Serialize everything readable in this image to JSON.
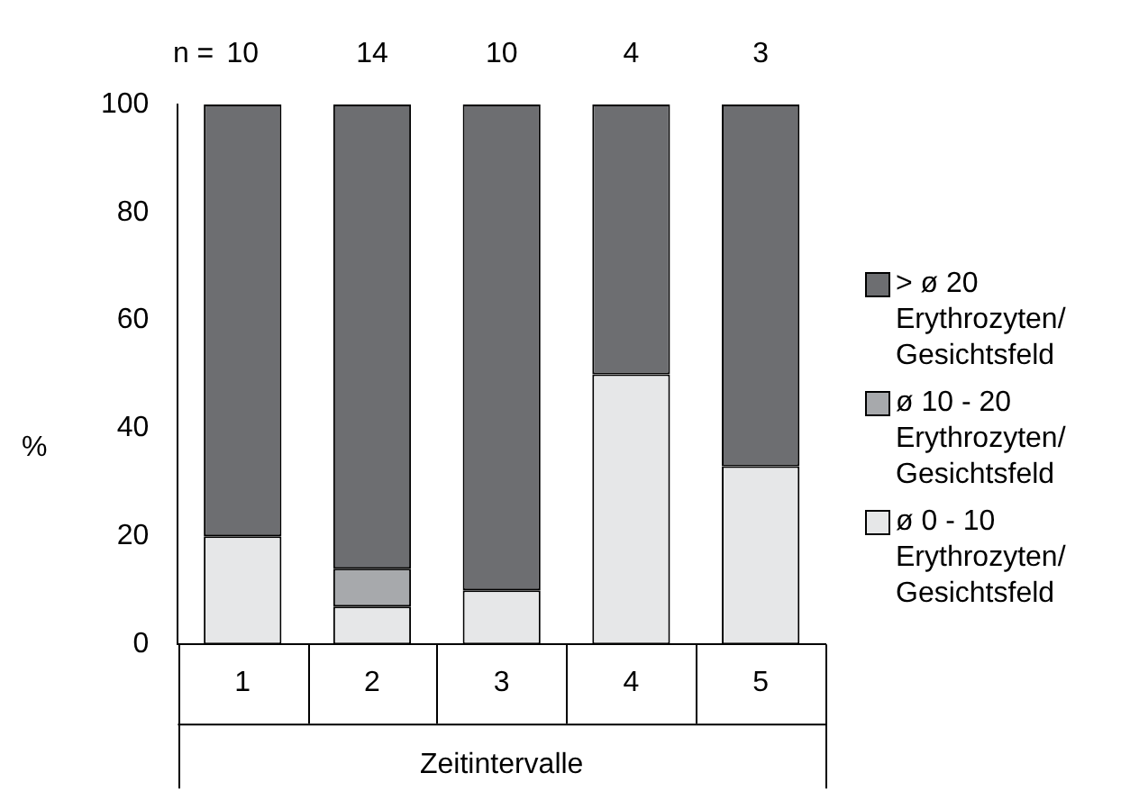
{
  "chart_data": {
    "type": "bar",
    "stacked": true,
    "categories": [
      "1",
      "2",
      "3",
      "4",
      "5"
    ],
    "series": [
      {
        "name": "ø 0 - 10 Erythrozyten/ Gesichtsfeld",
        "color": "#e6e7e8",
        "values": [
          20,
          7,
          10,
          50,
          33
        ]
      },
      {
        "name": "ø 10 - 20 Erythrozyten/ Gesichtsfeld",
        "color": "#a7a9ac",
        "values": [
          0,
          7,
          0,
          0,
          0
        ]
      },
      {
        "name": "> ø 20 Erythrozyten/ Gesichtsfeld",
        "color": "#6d6e71",
        "values": [
          80,
          86,
          90,
          50,
          67
        ]
      }
    ],
    "ylim": [
      0,
      100
    ],
    "yticks": [
      0,
      20,
      40,
      60,
      80,
      100
    ],
    "ylabel": "%",
    "xlabel": "Zeitintervalle",
    "grid": false,
    "legend": "right",
    "annotations": [
      "n =",
      "10",
      "14",
      "10",
      "4",
      "3"
    ]
  }
}
